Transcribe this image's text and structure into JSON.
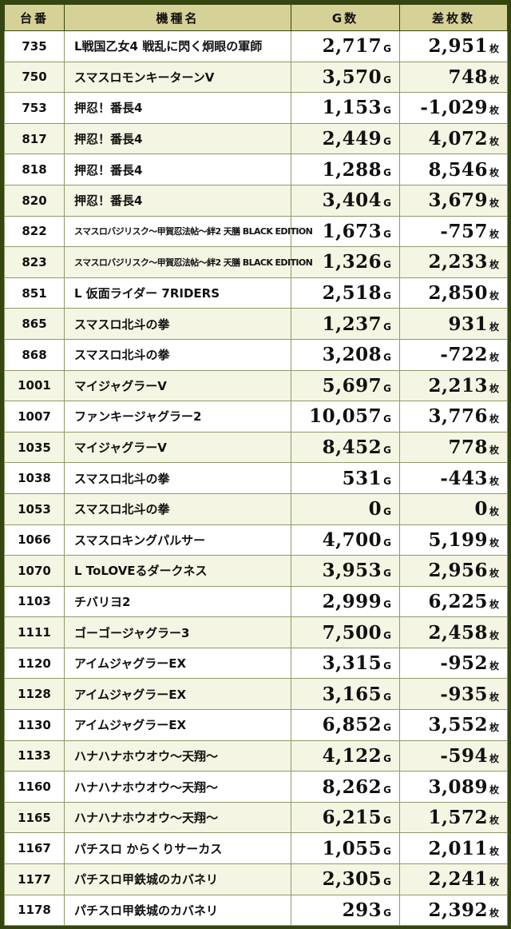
{
  "headers": {
    "machine_no": "台番",
    "model": "機種名",
    "games": "G数",
    "diff": "差枚数"
  },
  "units": {
    "games": "G",
    "diff": "枚"
  },
  "rows": [
    {
      "no": "735",
      "name": "L戦国乙女4 戦乱に閃く炯眼の軍師",
      "games": "2,717",
      "diff": "2,951"
    },
    {
      "no": "750",
      "name": "スマスロモンキーターンV",
      "games": "3,570",
      "diff": "748"
    },
    {
      "no": "753",
      "name": "押忍！番長4",
      "games": "1,153",
      "diff": "-1,029"
    },
    {
      "no": "817",
      "name": "押忍！番長4",
      "games": "2,449",
      "diff": "4,072"
    },
    {
      "no": "818",
      "name": "押忍！番長4",
      "games": "1,288",
      "diff": "8,546"
    },
    {
      "no": "820",
      "name": "押忍！番長4",
      "games": "3,404",
      "diff": "3,679"
    },
    {
      "no": "822",
      "name": "スマスロバジリスク～甲賀忍法帖～絆2 天膳 BLACK EDITION",
      "games": "1,673",
      "diff": "-757"
    },
    {
      "no": "823",
      "name": "スマスロバジリスク～甲賀忍法帖～絆2 天膳 BLACK EDITION",
      "games": "1,326",
      "diff": "2,233"
    },
    {
      "no": "851",
      "name": "L 仮面ライダー 7RIDERS",
      "games": "2,518",
      "diff": "2,850"
    },
    {
      "no": "865",
      "name": "スマスロ北斗の拳",
      "games": "1,237",
      "diff": "931"
    },
    {
      "no": "868",
      "name": "スマスロ北斗の拳",
      "games": "3,208",
      "diff": "-722"
    },
    {
      "no": "1001",
      "name": "マイジャグラーV",
      "games": "5,697",
      "diff": "2,213"
    },
    {
      "no": "1007",
      "name": "ファンキージャグラー2",
      "games": "10,057",
      "diff": "3,776"
    },
    {
      "no": "1035",
      "name": "マイジャグラーV",
      "games": "8,452",
      "diff": "778"
    },
    {
      "no": "1038",
      "name": "スマスロ北斗の拳",
      "games": "531",
      "diff": "-443"
    },
    {
      "no": "1053",
      "name": "スマスロ北斗の拳",
      "games": "0",
      "diff": "0"
    },
    {
      "no": "1066",
      "name": "スマスロキングパルサー",
      "games": "4,700",
      "diff": "5,199"
    },
    {
      "no": "1070",
      "name": "L ToLOVEるダークネス",
      "games": "3,953",
      "diff": "2,956"
    },
    {
      "no": "1103",
      "name": "チバリヨ2",
      "games": "2,999",
      "diff": "6,225"
    },
    {
      "no": "1111",
      "name": "ゴーゴージャグラー3",
      "games": "7,500",
      "diff": "2,458"
    },
    {
      "no": "1120",
      "name": "アイムジャグラーEX",
      "games": "3,315",
      "diff": "-952"
    },
    {
      "no": "1128",
      "name": "アイムジャグラーEX",
      "games": "3,165",
      "diff": "-935"
    },
    {
      "no": "1130",
      "name": "アイムジャグラーEX",
      "games": "6,852",
      "diff": "3,552"
    },
    {
      "no": "1133",
      "name": "ハナハナホウオウ～天翔～",
      "games": "4,122",
      "diff": "-594"
    },
    {
      "no": "1160",
      "name": "ハナハナホウオウ～天翔～",
      "games": "8,262",
      "diff": "3,089"
    },
    {
      "no": "1165",
      "name": "ハナハナホウオウ～天翔～",
      "games": "6,215",
      "diff": "1,572"
    },
    {
      "no": "1167",
      "name": "パチスロ からくりサーカス",
      "games": "1,055",
      "diff": "2,011"
    },
    {
      "no": "1177",
      "name": "パチスロ甲鉄城のカバネリ",
      "games": "2,305",
      "diff": "2,241"
    },
    {
      "no": "1178",
      "name": "パチスロ甲鉄城のカバネリ",
      "games": "293",
      "diff": "2,392"
    }
  ]
}
